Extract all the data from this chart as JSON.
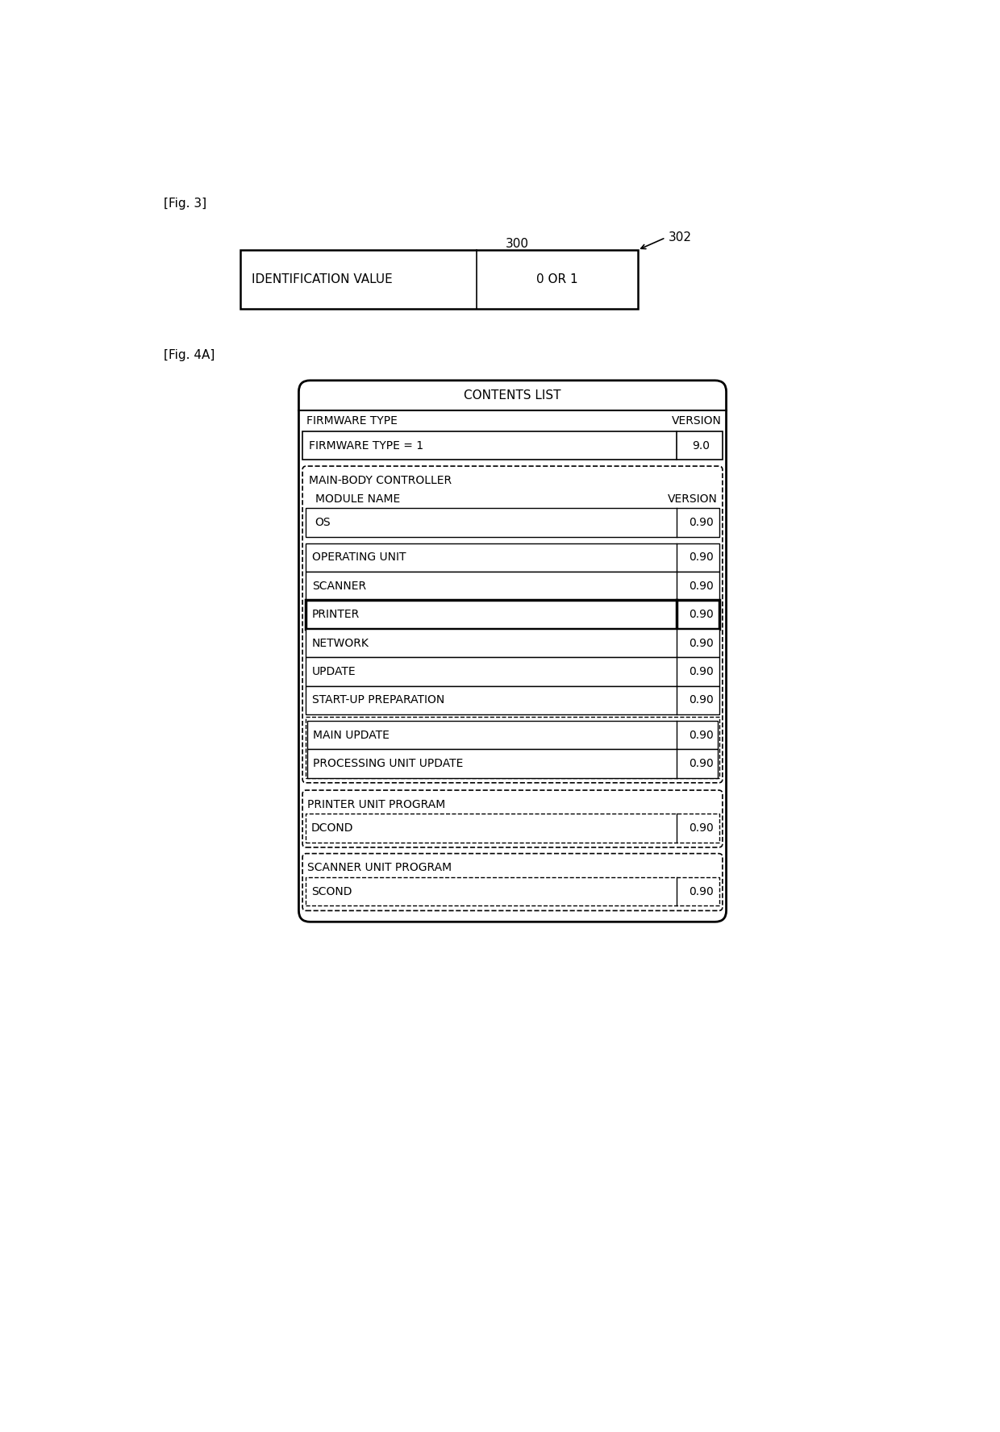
{
  "fig3_label": "[Fig. 3]",
  "fig4a_label": "[Fig. 4A]",
  "fig3_ref": "300",
  "fig3_arrow_label": "302",
  "fig3_col1": "IDENTIFICATION VALUE",
  "fig3_col2": "0 OR 1",
  "fig4_title": "CONTENTS LIST",
  "fig4_fw_type_label": "FIRMWARE TYPE",
  "fig4_version_label": "VERSION",
  "fig4_fw_row_label": "FIRMWARE TYPE = 1",
  "fig4_fw_row_version": "9.0",
  "fig4_main_body_label": "MAIN-BODY CONTROLLER",
  "fig4_module_name_label": "MODULE NAME",
  "fig4_module_version_label": "VERSION",
  "fig4_rows_group1": [
    {
      "name": "OS",
      "version": "0.90"
    }
  ],
  "fig4_rows_group2": [
    {
      "name": "OPERATING UNIT",
      "version": "0.90"
    },
    {
      "name": "SCANNER",
      "version": "0.90"
    },
    {
      "name": "PRINTER",
      "version": "0.90",
      "highlighted": true
    },
    {
      "name": "NETWORK",
      "version": "0.90"
    },
    {
      "name": "UPDATE",
      "version": "0.90"
    },
    {
      "name": "START-UP PREPARATION",
      "version": "0.90"
    }
  ],
  "fig4_rows_group3": [
    {
      "name": "MAIN UPDATE",
      "version": "0.90"
    },
    {
      "name": "PROCESSING UNIT UPDATE",
      "version": "0.90"
    }
  ],
  "fig4_printer_unit": "PRINTER UNIT PROGRAM",
  "fig4_printer_unit_rows": [
    {
      "name": "DCOND",
      "version": "0.90"
    }
  ],
  "fig4_scanner_unit": "SCANNER UNIT PROGRAM",
  "fig4_scanner_unit_rows": [
    {
      "name": "SCOND",
      "version": "0.90"
    }
  ],
  "bg_color": "#ffffff",
  "line_color": "#000000",
  "text_color": "#000000"
}
